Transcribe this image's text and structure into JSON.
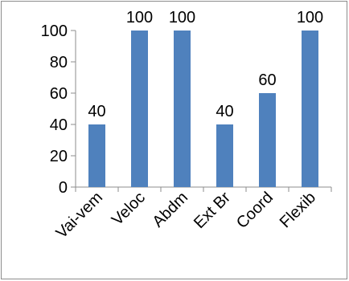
{
  "chart_data": {
    "type": "bar",
    "categories": [
      "Vai-vem",
      "Veloc",
      "Abdm",
      "Ext Br",
      "Coord",
      "Flexib"
    ],
    "values": [
      40,
      100,
      100,
      40,
      60,
      100
    ],
    "data_labels": [
      "40",
      "100",
      "100",
      "40",
      "60",
      "100"
    ],
    "y_ticks": [
      0,
      20,
      40,
      60,
      80,
      100
    ],
    "y_tick_labels": [
      "0",
      "20",
      "40",
      "60",
      "80",
      "100"
    ],
    "ylim": [
      0,
      100
    ],
    "bar_color": "#4f81bd",
    "grid": false,
    "legend": "none"
  }
}
